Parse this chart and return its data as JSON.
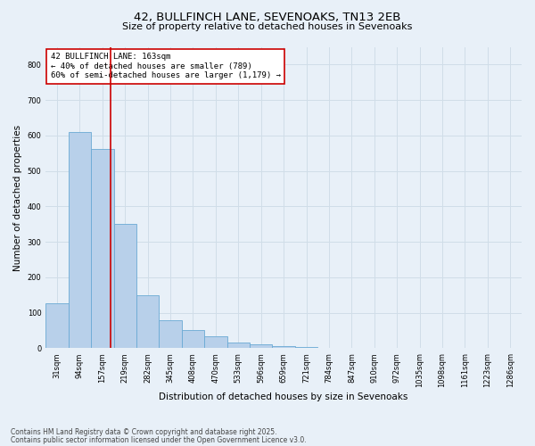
{
  "title_line1": "42, BULLFINCH LANE, SEVENOAKS, TN13 2EB",
  "title_line2": "Size of property relative to detached houses in Sevenoaks",
  "xlabel": "Distribution of detached houses by size in Sevenoaks",
  "ylabel": "Number of detached properties",
  "categories": [
    "31sqm",
    "94sqm",
    "157sqm",
    "219sqm",
    "282sqm",
    "345sqm",
    "408sqm",
    "470sqm",
    "533sqm",
    "596sqm",
    "659sqm",
    "721sqm",
    "784sqm",
    "847sqm",
    "910sqm",
    "972sqm",
    "1035sqm",
    "1098sqm",
    "1161sqm",
    "1223sqm",
    "1286sqm"
  ],
  "values": [
    128,
    609,
    563,
    352,
    150,
    78,
    52,
    35,
    15,
    12,
    5,
    3,
    2,
    1,
    1,
    0,
    0,
    0,
    0,
    0,
    0
  ],
  "bar_color": "#b8d0ea",
  "bar_edge_color": "#6aaad4",
  "grid_color": "#d0dde8",
  "annotation_text": "42 BULLFINCH LANE: 163sqm\n← 40% of detached houses are smaller (789)\n60% of semi-detached houses are larger (1,179) →",
  "annotation_box_color": "#ffffff",
  "annotation_edge_color": "#cc0000",
  "vline_x_index": 2.37,
  "vline_color": "#cc0000",
  "ylim": [
    0,
    850
  ],
  "yticks": [
    0,
    100,
    200,
    300,
    400,
    500,
    600,
    700,
    800
  ],
  "footnote1": "Contains HM Land Registry data © Crown copyright and database right 2025.",
  "footnote2": "Contains public sector information licensed under the Open Government Licence v3.0.",
  "bg_color": "#e8f0f8",
  "plot_bg_color": "#e8f0f8",
  "title_fontsize": 9.5,
  "subtitle_fontsize": 8,
  "ylabel_fontsize": 7.5,
  "xlabel_fontsize": 7.5,
  "tick_fontsize": 6,
  "annot_fontsize": 6.5,
  "footnote_fontsize": 5.5
}
